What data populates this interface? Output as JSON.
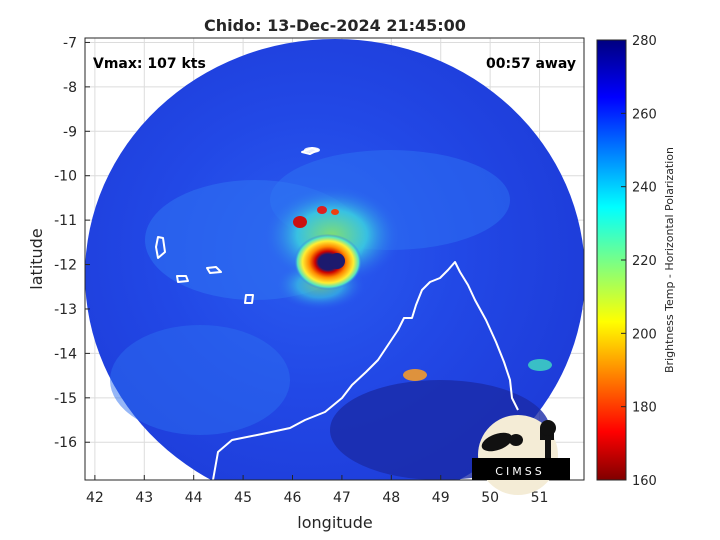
{
  "title": "Chido: 13-Dec-2024 21:45:00",
  "annotations": {
    "vmax": "Vmax: 107 kts",
    "away": "00:57 away"
  },
  "axes": {
    "xlabel": "longitude",
    "ylabel": "latitude",
    "xticks": [
      "42",
      "43",
      "44",
      "45",
      "46",
      "47",
      "48",
      "49",
      "50",
      "51"
    ],
    "yticks": [
      "-7",
      "-8",
      "-9",
      "-10",
      "-11",
      "-12",
      "-13",
      "-14",
      "-15",
      "-16"
    ],
    "xlim": [
      41.8,
      51.9
    ],
    "ylim": [
      -16.85,
      -6.9
    ]
  },
  "colorbar": {
    "label": "Brightness Temp - Horizontal Polarization",
    "ticks": [
      "280",
      "260",
      "240",
      "220",
      "200",
      "180",
      "160"
    ],
    "range": [
      160,
      280
    ],
    "colormap": "jet"
  },
  "storm_center": {
    "lon": 46.9,
    "lat": -11.9
  },
  "logo": {
    "text": "CIMSS"
  },
  "colors": {
    "background_scene": "#1e3ee6",
    "deep_blue": "#1a2fc4",
    "eye_dark": "#1c1a6e",
    "coast": "#ffffff"
  }
}
